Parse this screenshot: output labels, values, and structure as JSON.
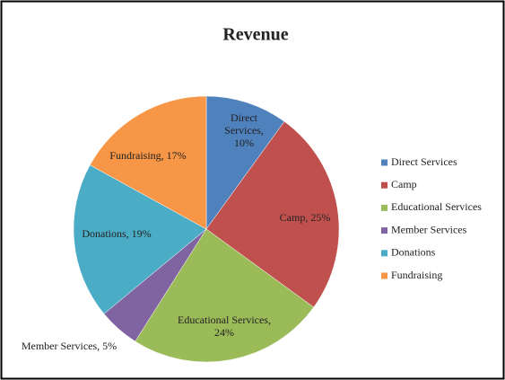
{
  "chart_data": {
    "type": "pie",
    "title": "Revenue",
    "categories": [
      "Direct Services",
      "Camp",
      "Educational Services",
      "Member Services",
      "Donations",
      "Fundraising"
    ],
    "values": [
      10,
      25,
      24,
      5,
      19,
      17
    ],
    "value_labels": [
      "Direct Services, 10%",
      "Camp, 25%",
      "Educational Services, 24%",
      "Member Services, 5%",
      "Donations, 19%",
      "Fundraising, 17%"
    ],
    "colors": [
      "#4f81bd",
      "#c0504d",
      "#9bbb59",
      "#8064a2",
      "#4bacc6",
      "#f79646"
    ],
    "legend": "right"
  }
}
